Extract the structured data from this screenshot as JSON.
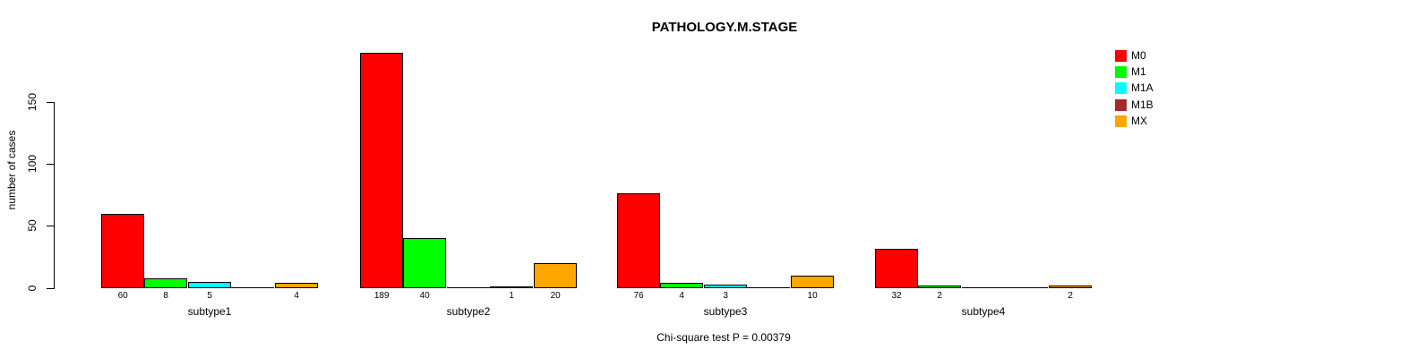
{
  "chart_data": {
    "type": "bar",
    "title": "PATHOLOGY.M.STAGE",
    "subtitle": "Chi-square test P = 0.00379",
    "xlabel": "",
    "ylabel": "number of cases",
    "categories": [
      "subtype1",
      "subtype2",
      "subtype3",
      "subtype4"
    ],
    "series": [
      {
        "name": "M0",
        "color": "#FF0000",
        "values": [
          60,
          189,
          76,
          32
        ]
      },
      {
        "name": "M1",
        "color": "#00FF00",
        "values": [
          8,
          40,
          4,
          2
        ]
      },
      {
        "name": "M1A",
        "color": "#00FFFF",
        "values": [
          5,
          0,
          3,
          0
        ]
      },
      {
        "name": "M1B",
        "color": "#A52A2A",
        "values": [
          0,
          1,
          0,
          0
        ]
      },
      {
        "name": "MX",
        "color": "#FFA500",
        "values": [
          4,
          20,
          10,
          2
        ]
      }
    ],
    "yticks": [
      0,
      50,
      100,
      150
    ],
    "ylim": [
      0,
      193
    ],
    "grid": false,
    "legend_position": "top-right",
    "bar_value_labels": "shown under each non-zero bar",
    "zero_bars": "drawn as flat black line segments on the baseline"
  }
}
